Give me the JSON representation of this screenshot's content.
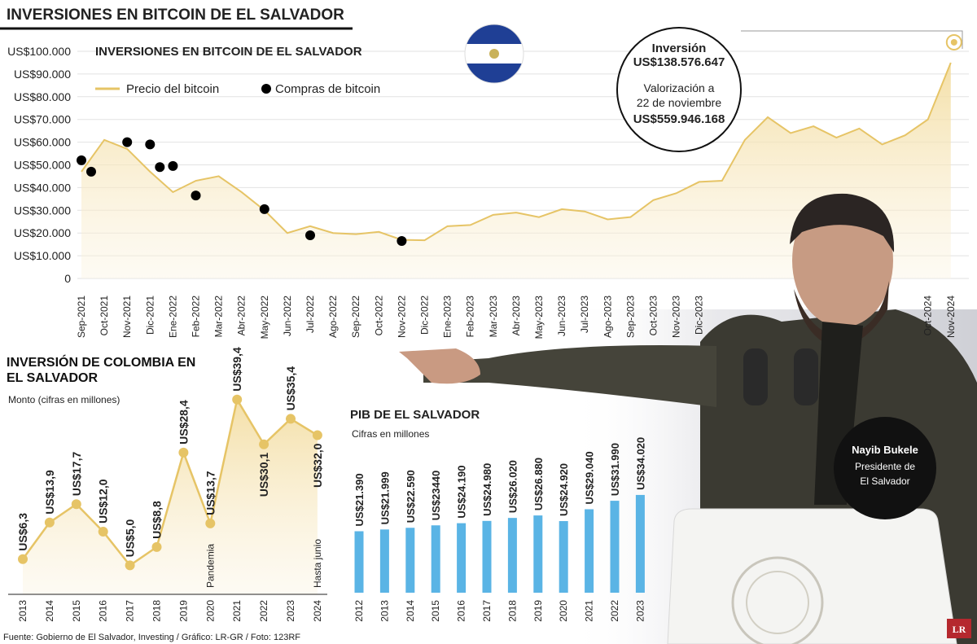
{
  "header": {
    "title": "INVERSIONES EN BITCOIN DE EL SALVADOR"
  },
  "callout": {
    "title": "Inversión",
    "amount": "US$138.576.647",
    "note": [
      "Valorización a",
      "22 de noviembre"
    ],
    "value": "US$559.946.168"
  },
  "photo_caption": {
    "name": "Nayib Bukele",
    "role": [
      "Presidente de",
      "El Salvador"
    ]
  },
  "logo": "LR",
  "source": "Fuente: Gobierno de El Salvador, Investing / Gráfico: LR-GR / Foto: 123RF",
  "chart_data": [
    {
      "type": "line",
      "title": "INVERSIONES EN BITCOIN DE EL SALVADOR",
      "categories": [
        "Sep-2021",
        "Oct-2021",
        "Nov-2021",
        "Dic-2021",
        "Ene-2022",
        "Feb-2022",
        "Mar-2022",
        "Abr-2022",
        "May-2022",
        "Jun-2022",
        "Jul-2022",
        "Ago-2022",
        "Sep-2022",
        "Oct-2022",
        "Nov-2022",
        "Dic-2022",
        "Ene-2023",
        "Feb-2023",
        "Mar-2023",
        "Abr-2023",
        "May-2023",
        "Jun-2023",
        "Jul-2023",
        "Ago-2023",
        "Sep-2023",
        "Oct-2023",
        "Nov-2023",
        "Dic-2023",
        null,
        null,
        null,
        null,
        null,
        null,
        null,
        null,
        null,
        "Oct-2024",
        "Nov-2024"
      ],
      "series": [
        {
          "name": "Precio del bitcoin",
          "color": "#e6c466",
          "values": [
            47000,
            61000,
            57000,
            47000,
            38000,
            43000,
            45000,
            38000,
            30000,
            20000,
            23000,
            20000,
            19500,
            20500,
            17000,
            16800,
            23000,
            23500,
            28000,
            29000,
            27000,
            30500,
            29500,
            26000,
            27000,
            34500,
            37500,
            42500,
            43000,
            61000,
            71000,
            64000,
            67000,
            62000,
            66000,
            59000,
            63000,
            70000,
            95000
          ]
        },
        {
          "name": "Compras de bitcoin",
          "type": "scatter",
          "color": "#000000",
          "x": [
            "Sep-2021",
            "Sep-2021",
            "Nov-2021",
            "Dic-2021",
            "Dic-2021",
            "Ene-2022",
            "Feb-2022",
            "May-2022",
            "Jul-2022",
            "Nov-2022"
          ],
          "values": [
            52000,
            47000,
            60000,
            59000,
            49000,
            49500,
            36500,
            30500,
            19000,
            16500
          ]
        }
      ],
      "ylim": [
        0,
        100000
      ],
      "yticks": [
        0,
        {
          "value": 10000,
          "label": "US$10.000"
        },
        {
          "value": 20000,
          "label": "US$20.000"
        },
        {
          "value": 30000,
          "label": "US$30.000"
        },
        {
          "value": 40000,
          "label": "US$40.000"
        },
        {
          "value": 50000,
          "label": "US$50.000"
        },
        {
          "value": 60000,
          "label": "US$60.000"
        },
        {
          "value": 70000,
          "label": "US$70.000"
        },
        {
          "value": 80000,
          "label": "US$80.000"
        },
        {
          "value": 90000,
          "label": "US$90.000"
        },
        {
          "value": 100000,
          "label": "US$100.000"
        }
      ],
      "grid": true
    },
    {
      "type": "area",
      "title": "INVERSIÓN DE COLOMBIA EN EL SALVADOR",
      "subtitle": "Monto (cifras en millones)",
      "categories": [
        "2013",
        "2014",
        "2015",
        "2016",
        "2017",
        "2018",
        "2019",
        "2020",
        "2021",
        "2022",
        "2023",
        "2024"
      ],
      "values": [
        6.3,
        13.9,
        17.7,
        12.0,
        5.0,
        8.8,
        28.4,
        13.7,
        39.4,
        30.1,
        35.4,
        32.0
      ],
      "value_labels": [
        "US$6,3",
        "US$13,9",
        "US$17,7",
        "US$12,0",
        "US$5,0",
        "US$8,8",
        "US$28,4",
        "US$13,7",
        "US$39,4",
        "US$30,1",
        "US$35,4",
        "US$32,0"
      ],
      "color": "#e6c466",
      "annotations": [
        {
          "category": "2020",
          "text": "Pandemia"
        },
        {
          "category": "2024",
          "text": "Hasta junio"
        }
      ]
    },
    {
      "type": "bar",
      "title": "PIB DE EL SALVADOR",
      "subtitle": "Cifras en millones",
      "categories": [
        "2012",
        "2013",
        "2014",
        "2015",
        "2016",
        "2017",
        "2018",
        "2019",
        "2020",
        "2021",
        "2022",
        "2023"
      ],
      "values": [
        21390,
        21999,
        22590,
        23440,
        24190,
        24980,
        26020,
        26880,
        24920,
        29040,
        31990,
        34020
      ],
      "value_labels": [
        "US$21.390",
        "US$21.999",
        "US$22.590",
        "US$23440",
        "US$24.190",
        "US$24.980",
        "US$26.020",
        "US$26.880",
        "US$24.920",
        "US$29.040",
        "US$31.990",
        "US$34.020"
      ],
      "color": "#5ab4e5"
    }
  ]
}
